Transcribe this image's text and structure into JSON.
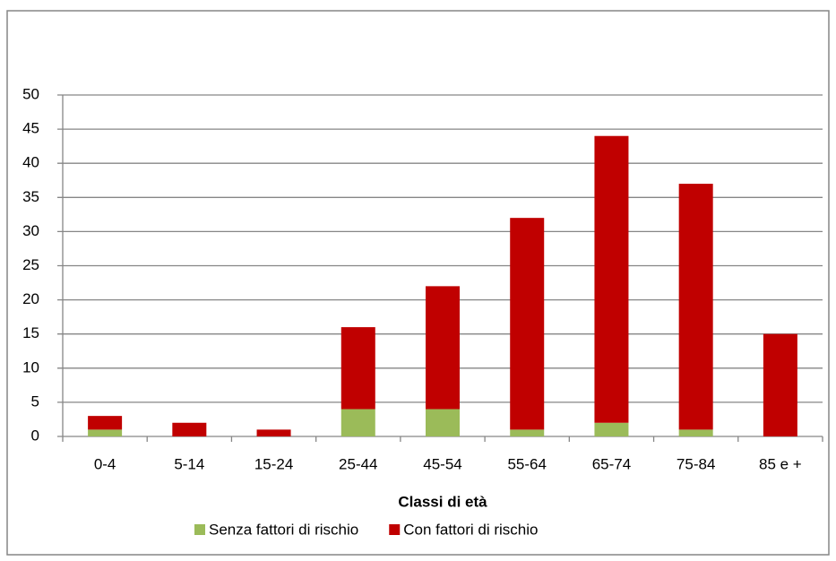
{
  "chart_data": {
    "type": "stacked_bar",
    "x_label": "Classi di età",
    "categories": [
      "0-4",
      "5-14",
      "15-24",
      "25-44",
      "45-54",
      "55-64",
      "65-74",
      "75-84",
      "85 e +"
    ],
    "series": [
      {
        "name": "Senza fattori di rischio",
        "color": "#9bbb59",
        "values": [
          1,
          0,
          0,
          4,
          4,
          1,
          2,
          1,
          0
        ]
      },
      {
        "name": "Con fattori di rischio",
        "color": "#c00000",
        "values": [
          2,
          2,
          1,
          12,
          18,
          31,
          42,
          36,
          15
        ]
      }
    ],
    "ylim": [
      0,
      50
    ],
    "yticks": [
      0,
      5,
      10,
      15,
      20,
      25,
      30,
      35,
      40,
      45,
      50
    ],
    "grid": true,
    "legend": "bottom"
  }
}
